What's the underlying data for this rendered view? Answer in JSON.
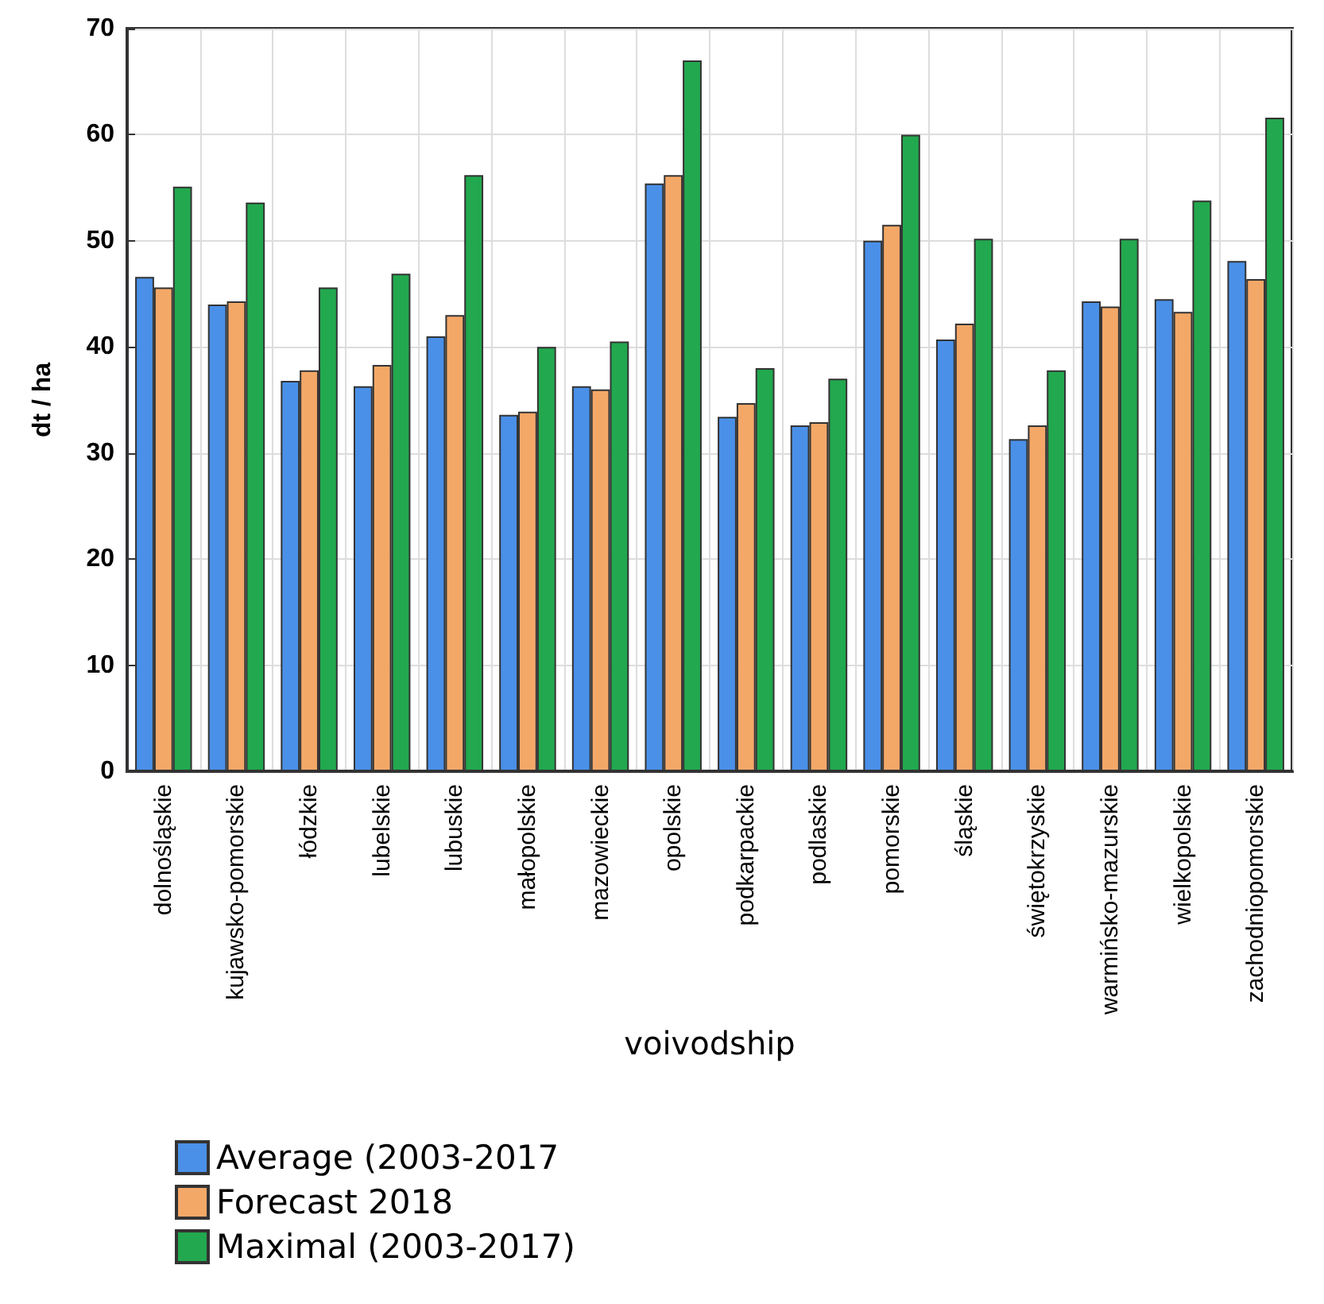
{
  "chart_data": {
    "type": "bar",
    "xlabel": "voivodship",
    "ylabel": "dt / ha",
    "categories": [
      "dolnośląskie",
      "kujawsko-pomorskie",
      "łódzkie",
      "lubelskie",
      "lubuskie",
      "małopolskie",
      "mazowieckie",
      "opolskie",
      "podkarpackie",
      "podlaskie",
      "pomorskie",
      "śląskie",
      "świętokrzyskie",
      "warmińsko-mazurskie",
      "wielkopolskie",
      "zachodniopomorskie"
    ],
    "series": [
      {
        "name": "Average (2003-2017",
        "color": "#4a90e8",
        "values": [
          46.6,
          44.0,
          36.8,
          36.3,
          41.0,
          33.6,
          36.3,
          55.4,
          33.4,
          32.6,
          50.0,
          40.7,
          31.3,
          44.3,
          44.5,
          48.1
        ]
      },
      {
        "name": "Forecast 2018",
        "color": "#f4a868",
        "values": [
          45.6,
          44.3,
          37.8,
          38.3,
          43.0,
          33.9,
          36.0,
          56.2,
          34.7,
          32.9,
          51.5,
          42.2,
          32.6,
          43.8,
          43.3,
          46.4
        ]
      },
      {
        "name": "Maximal (2003-2017)",
        "color": "#22a84e",
        "values": [
          55.1,
          53.6,
          45.6,
          46.9,
          56.2,
          40.0,
          40.5,
          67.0,
          38.0,
          37.0,
          60.0,
          50.2,
          37.8,
          50.2,
          53.8,
          61.6
        ]
      }
    ],
    "ylim": [
      0,
      70
    ],
    "yticks": [
      0,
      10,
      20,
      30,
      40,
      50,
      60,
      70
    ],
    "grid": true,
    "legend": "bottom left"
  }
}
